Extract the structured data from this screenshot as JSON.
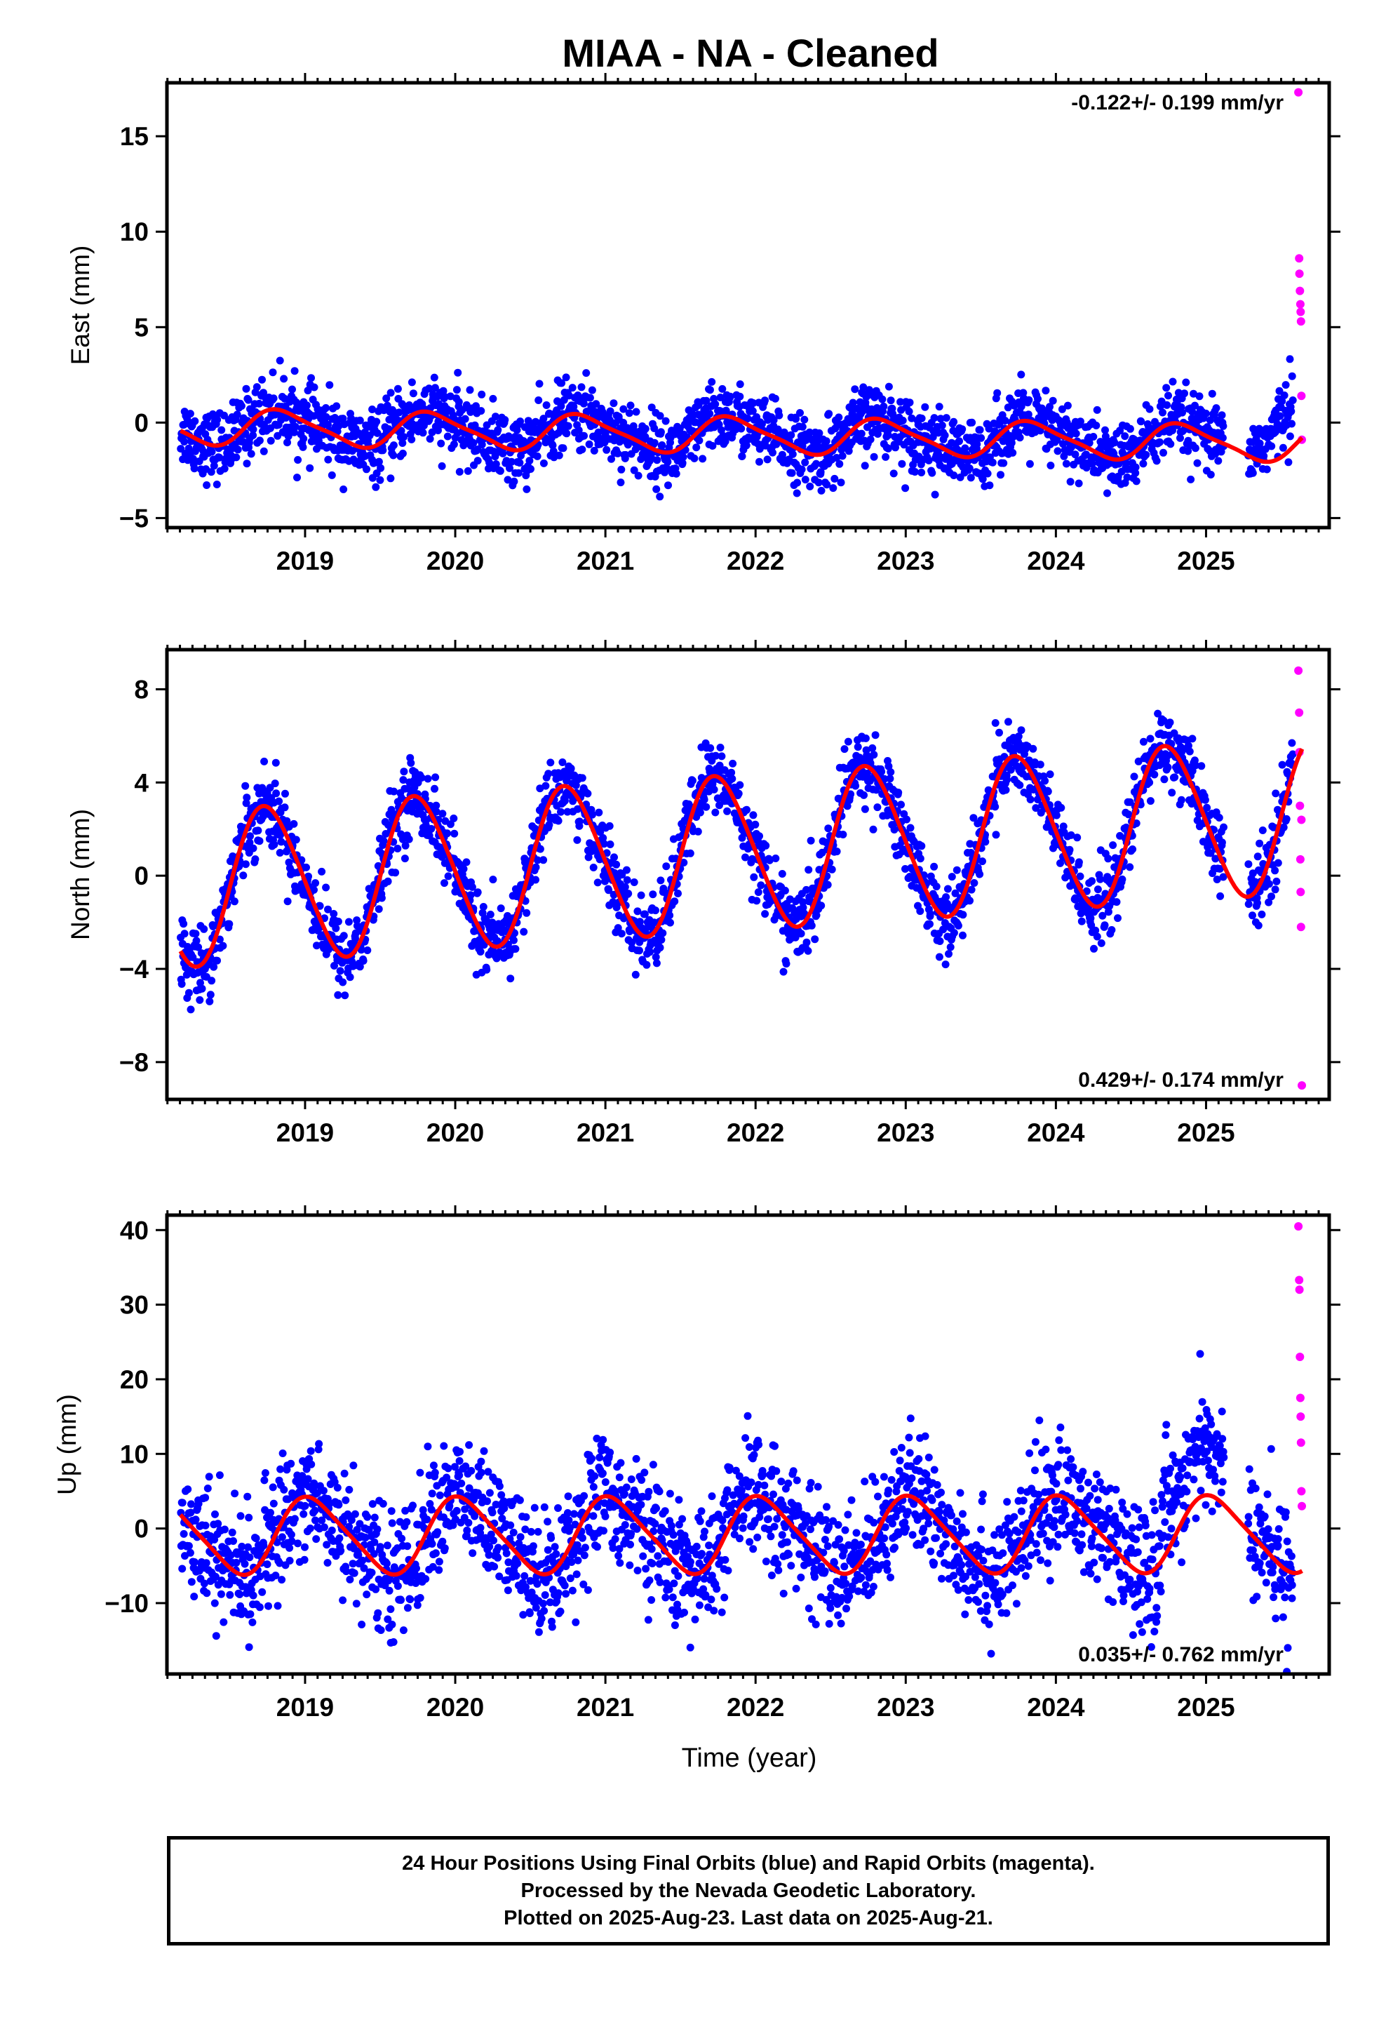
{
  "title": "MIAA  - NA - Cleaned",
  "xlabel": "Time (year)",
  "footer": {
    "line1": "24 Hour Positions Using Final Orbits (blue) and Rapid Orbits (magenta).",
    "line2": "Processed by the Nevada Geodetic Laboratory.",
    "line3": "Plotted on 2025-Aug-23. Last data on 2025-Aug-21."
  },
  "colors": {
    "final_orbits": "#0000ff",
    "rapid_orbits": "#ff00ff",
    "model": "#ff0000"
  },
  "chart_data": [
    {
      "type": "scatter",
      "ylabel": "East (mm)",
      "xlim": [
        2018.08,
        2025.82
      ],
      "ylim": [
        -5.5,
        17.8
      ],
      "yticks": [
        -5,
        0,
        5,
        10,
        15
      ],
      "xticks": [
        2019,
        2020,
        2021,
        2022,
        2023,
        2024,
        2025
      ],
      "rate_label": "-0.122+/- 0.199 mm/yr",
      "rate_position": "top-right",
      "series": [
        {
          "kind": "final",
          "t_range": [
            2018.17,
            2025.58
          ],
          "gaps": [
            [
              2025.12,
              2025.28
            ]
          ],
          "noise_mm": 0.9,
          "density_per_year": 300
        },
        {
          "kind": "rapid",
          "t": [
            2025.615,
            2025.62,
            2025.622,
            2025.625,
            2025.628,
            2025.63,
            2025.632,
            2025.635,
            2025.638
          ],
          "y": [
            17.3,
            8.6,
            7.8,
            6.9,
            6.2,
            5.8,
            5.3,
            1.4,
            -0.9
          ]
        }
      ],
      "model": {
        "trend_mm_per_yr": -0.122,
        "intercept_mm": -0.2,
        "annual_amp_mm": 0.9,
        "annual_phase_yr": 0.6,
        "semiannual_amp_mm": 0.2
      }
    },
    {
      "type": "scatter",
      "ylabel": "North (mm)",
      "xlim": [
        2018.08,
        2025.82
      ],
      "ylim": [
        -9.6,
        9.7
      ],
      "yticks": [
        -8,
        -4,
        0,
        4,
        8
      ],
      "xticks": [
        2019,
        2020,
        2021,
        2022,
        2023,
        2024,
        2025
      ],
      "rate_label": "0.429+/- 0.174 mm/yr",
      "rate_position": "bottom-right",
      "series": [
        {
          "kind": "final",
          "t_range": [
            2018.17,
            2025.58
          ],
          "gaps": [
            [
              2025.12,
              2025.28
            ]
          ],
          "noise_mm": 0.8,
          "density_per_year": 300
        },
        {
          "kind": "rapid",
          "t": [
            2025.615,
            2025.62,
            2025.622,
            2025.625,
            2025.628,
            2025.63,
            2025.632,
            2025.635,
            2025.638
          ],
          "y": [
            8.8,
            7.0,
            5.3,
            3.0,
            0.7,
            -0.7,
            -2.2,
            2.4,
            -9.0
          ]
        }
      ],
      "model": {
        "trend_mm_per_yr": 0.429,
        "intercept_mm": -0.6,
        "annual_amp_mm": 3.3,
        "annual_phase_yr": 0.5,
        "semiannual_amp_mm": 0.3
      }
    },
    {
      "type": "scatter",
      "ylabel": "Up (mm)",
      "xlim": [
        2018.08,
        2025.82
      ],
      "ylim": [
        -19.5,
        42.0
      ],
      "yticks": [
        -10,
        0,
        10,
        20,
        30,
        40
      ],
      "xticks": [
        2019,
        2020,
        2021,
        2022,
        2023,
        2024,
        2025
      ],
      "rate_label": "0.035+/- 0.762 mm/yr",
      "rate_position": "bottom-right",
      "series": [
        {
          "kind": "final",
          "t_range": [
            2018.17,
            2025.58
          ],
          "gaps": [
            [
              2025.12,
              2025.28
            ]
          ],
          "noise_mm": 4.0,
          "density_per_year": 300
        },
        {
          "kind": "rapid",
          "t": [
            2025.615,
            2025.62,
            2025.622,
            2025.625,
            2025.628,
            2025.63,
            2025.632,
            2025.635,
            2025.638
          ],
          "y": [
            40.5,
            33.3,
            32.0,
            23.0,
            17.5,
            15.0,
            11.5,
            5.0,
            3.0
          ]
        }
      ],
      "model": {
        "trend_mm_per_yr": 0.035,
        "intercept_mm": -1.0,
        "annual_amp_mm": 5.0,
        "annual_phase_yr": 0.8,
        "semiannual_amp_mm": 0.8
      }
    }
  ]
}
